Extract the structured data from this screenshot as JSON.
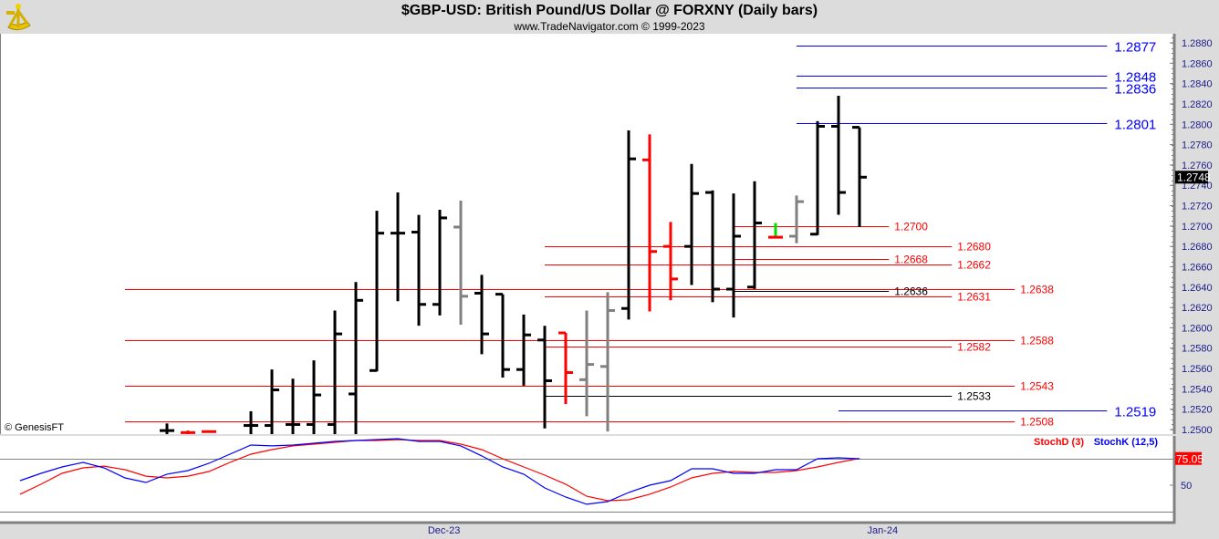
{
  "header": {
    "title": "$GBP-USD:  British Pound/US Dollar @ FORXNY  (Daily bars)",
    "subtitle": "www.TradeNavigator.com © 1999-2023"
  },
  "watermark": "© GenesisFT",
  "colors": {
    "up": "#000000",
    "down": "#ff0000",
    "neutral": "#808080",
    "green": "#00dd00",
    "blue": "#0000ff",
    "stochK": "#0000ff",
    "stochD": "#ff0000"
  },
  "chart_data": [
    {
      "type": "ohlc",
      "title": "$GBP-USD Daily bars",
      "ylim": [
        1.2496,
        1.2893
      ],
      "y_ticks": [
        "1.2500",
        "1.2520",
        "1.2540",
        "1.2560",
        "1.2580",
        "1.2600",
        "1.2620",
        "1.2640",
        "1.2660",
        "1.2680",
        "1.2700",
        "1.2720",
        "1.2740",
        "1.2760",
        "1.2780",
        "1.2800",
        "1.2820",
        "1.2840",
        "1.2860",
        "1.2880"
      ],
      "last_price": "1.2748",
      "x_labels": [
        {
          "label": "Dec-23",
          "bar": 13.2
        },
        {
          "label": "Jan-24",
          "bar": 34.1
        }
      ],
      "bars": [
        {
          "i": 0,
          "o": 1.2499,
          "h": 1.2506,
          "l": 1.2496,
          "c": 1.2499,
          "color": "up"
        },
        {
          "i": 1,
          "o": 1.2497,
          "h": 1.2499,
          "l": 1.2496,
          "c": 1.2497,
          "color": "down"
        },
        {
          "i": 2,
          "o": 1.2498,
          "h": 1.2498,
          "l": 1.2498,
          "c": 1.2498,
          "color": "down"
        },
        {
          "i": 4,
          "o": 1.2504,
          "h": 1.2518,
          "l": 1.2496,
          "c": 1.2504,
          "color": "up"
        },
        {
          "i": 5,
          "o": 1.2504,
          "h": 1.2559,
          "l": 1.2496,
          "c": 1.2539,
          "color": "up"
        },
        {
          "i": 6,
          "o": 1.2505,
          "h": 1.255,
          "l": 1.2496,
          "c": 1.2505,
          "color": "up"
        },
        {
          "i": 7,
          "o": 1.2505,
          "h": 1.2568,
          "l": 1.2496,
          "c": 1.2534,
          "color": "up"
        },
        {
          "i": 8,
          "o": 1.2505,
          "h": 1.2617,
          "l": 1.2496,
          "c": 1.2594,
          "color": "up"
        },
        {
          "i": 9,
          "o": 1.2535,
          "h": 1.2645,
          "l": 1.2496,
          "c": 1.2627,
          "color": "up"
        },
        {
          "i": 10,
          "o": 1.2558,
          "h": 1.2715,
          "l": 1.2558,
          "c": 1.2693,
          "color": "up"
        },
        {
          "i": 11,
          "o": 1.2693,
          "h": 1.2733,
          "l": 1.2627,
          "c": 1.2693,
          "color": "up"
        },
        {
          "i": 12,
          "o": 1.2694,
          "h": 1.2711,
          "l": 1.2603,
          "c": 1.2623,
          "color": "up"
        },
        {
          "i": 13,
          "o": 1.2623,
          "h": 1.2716,
          "l": 1.2613,
          "c": 1.2708,
          "color": "up"
        },
        {
          "i": 14,
          "o": 1.2699,
          "h": 1.2725,
          "l": 1.2604,
          "c": 1.2631,
          "color": "neutral"
        },
        {
          "i": 15,
          "o": 1.2634,
          "h": 1.2652,
          "l": 1.2575,
          "c": 1.2594,
          "color": "up"
        },
        {
          "i": 16,
          "o": 1.2633,
          "h": 1.2633,
          "l": 1.2552,
          "c": 1.2559,
          "color": "up"
        },
        {
          "i": 17,
          "o": 1.2559,
          "h": 1.2613,
          "l": 1.2544,
          "c": 1.2593,
          "color": "up"
        },
        {
          "i": 18,
          "o": 1.2588,
          "h": 1.2602,
          "l": 1.2502,
          "c": 1.2548,
          "color": "up"
        },
        {
          "i": 19,
          "o": 1.2595,
          "h": 1.2595,
          "l": 1.2526,
          "c": 1.2556,
          "color": "down"
        },
        {
          "i": 20,
          "o": 1.2549,
          "h": 1.2617,
          "l": 1.2514,
          "c": 1.2564,
          "color": "neutral"
        },
        {
          "i": 21,
          "o": 1.2562,
          "h": 1.2635,
          "l": 1.2499,
          "c": 1.2617,
          "color": "neutral"
        },
        {
          "i": 22,
          "o": 1.2619,
          "h": 1.2794,
          "l": 1.2609,
          "c": 1.2766,
          "color": "up"
        },
        {
          "i": 23,
          "o": 1.2765,
          "h": 1.279,
          "l": 1.2617,
          "c": 1.2675,
          "color": "down"
        },
        {
          "i": 24,
          "o": 1.268,
          "h": 1.2704,
          "l": 1.2628,
          "c": 1.2648,
          "color": "down"
        },
        {
          "i": 25,
          "o": 1.268,
          "h": 1.2761,
          "l": 1.2643,
          "c": 1.2732,
          "color": "up"
        },
        {
          "i": 26,
          "o": 1.2733,
          "h": 1.2735,
          "l": 1.2626,
          "c": 1.2638,
          "color": "up"
        },
        {
          "i": 27,
          "o": 1.2638,
          "h": 1.2732,
          "l": 1.2611,
          "c": 1.269,
          "color": "up"
        },
        {
          "i": 28,
          "o": 1.264,
          "h": 1.2744,
          "l": 1.2639,
          "c": 1.2703,
          "color": "up"
        },
        {
          "i": 29,
          "o": 1.2689,
          "h": 1.2703,
          "l": 1.2689,
          "c": 1.2689,
          "color": "green"
        },
        {
          "i": 30,
          "o": 1.269,
          "h": 1.273,
          "l": 1.2684,
          "c": 1.2724,
          "color": "neutral"
        },
        {
          "i": 31,
          "o": 1.2692,
          "h": 1.2803,
          "l": 1.2692,
          "c": 1.2798,
          "color": "up"
        },
        {
          "i": 32,
          "o": 1.2798,
          "h": 1.2828,
          "l": 1.2712,
          "c": 1.2733,
          "color": "up"
        },
        {
          "i": 33,
          "o": 1.2797,
          "h": 1.2797,
          "l": 1.27,
          "c": 1.2748,
          "color": "up"
        }
      ],
      "levels": [
        {
          "price": 1.2877,
          "label": "1.2877",
          "color": "blue",
          "from_bar": 30,
          "to_bar": 44.8
        },
        {
          "price": 1.2848,
          "label": "1.2848",
          "color": "blue",
          "from_bar": 30,
          "to_bar": 44.8
        },
        {
          "price": 1.2836,
          "label": "1.2836",
          "color": "blue",
          "from_bar": 30,
          "to_bar": 44.8
        },
        {
          "price": 1.2801,
          "label": "1.2801",
          "color": "blue",
          "from_bar": 30,
          "to_bar": 44.8
        },
        {
          "price": 1.27,
          "label": "1.2700",
          "color": "down",
          "from_bar": 27,
          "to_bar": 34.4
        },
        {
          "price": 1.268,
          "label": "1.2680",
          "color": "down",
          "from_bar": 18,
          "to_bar": 37.4
        },
        {
          "price": 1.2668,
          "label": "1.2668",
          "color": "down",
          "from_bar": 27,
          "to_bar": 34.4
        },
        {
          "price": 1.2662,
          "label": "1.2662",
          "color": "down",
          "from_bar": 18,
          "to_bar": 37.4
        },
        {
          "price": 1.2638,
          "label": "1.2638",
          "color": "down",
          "from_bar": -2,
          "to_bar": 40.4
        },
        {
          "price": 1.2636,
          "label": "1.2636",
          "color": "up",
          "from_bar": 27,
          "to_bar": 34.4
        },
        {
          "price": 1.2631,
          "label": "1.2631",
          "color": "down",
          "from_bar": 18,
          "to_bar": 37.4
        },
        {
          "price": 1.2588,
          "label": "1.2588",
          "color": "down",
          "from_bar": -2,
          "to_bar": 40.4
        },
        {
          "price": 1.2582,
          "label": "1.2582",
          "color": "down",
          "from_bar": 18,
          "to_bar": 37.4
        },
        {
          "price": 1.2543,
          "label": "1.2543",
          "color": "down",
          "from_bar": -2,
          "to_bar": 40.4
        },
        {
          "price": 1.2533,
          "label": "1.2533",
          "color": "up",
          "from_bar": 18,
          "to_bar": 37.4
        },
        {
          "price": 1.2519,
          "label": "1.2519",
          "color": "blue",
          "from_bar": 32,
          "to_bar": 44.8
        },
        {
          "price": 1.2508,
          "label": "1.2508",
          "color": "down",
          "from_bar": -2,
          "to_bar": 40.4
        }
      ]
    },
    {
      "type": "line",
      "title": "Stochastic",
      "ylim": [
        15,
        97
      ],
      "ref_lines": [
        75,
        25
      ],
      "y_ticks": [
        "50"
      ],
      "last_value": "75.05",
      "x_start_bar": -7,
      "series": [
        {
          "name": "StochD (3)",
          "color": "stochD",
          "values": [
            41.5,
            50.9,
            61.1,
            66.2,
            67.9,
            64.5,
            58.5,
            56.8,
            58.5,
            62.8,
            71.4,
            79.1,
            83.3,
            86.8,
            88.5,
            90.2,
            91.9,
            91.9,
            92.7,
            91.9,
            91.9,
            88.5,
            83.3,
            74.8,
            67.1,
            59.4,
            50.9,
            39.7,
            35.5,
            36.3,
            41.5,
            48.3,
            56.8,
            61.1,
            62.8,
            62.0,
            62.0,
            63.7,
            67.1,
            71.4,
            75.05
          ]
        },
        {
          "name": "StochK (12,5)",
          "color": "stochK",
          "values": [
            54.3,
            61.1,
            67.1,
            71.4,
            66.2,
            56.8,
            52.6,
            60.3,
            63.7,
            70.5,
            79.1,
            87.6,
            86.8,
            87.6,
            89.3,
            91.0,
            91.9,
            92.7,
            93.6,
            91.0,
            91.0,
            86.8,
            77.4,
            67.1,
            60.3,
            47.4,
            38.9,
            32.1,
            34.6,
            43.2,
            50.0,
            54.3,
            65.4,
            65.4,
            61.1,
            61.1,
            64.5,
            64.5,
            74.8,
            75.6,
            74.8
          ]
        }
      ]
    }
  ]
}
